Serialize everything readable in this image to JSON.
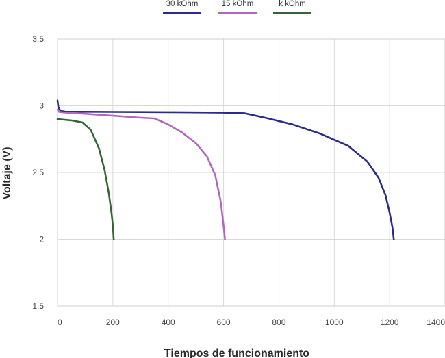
{
  "chart_data": {
    "type": "line",
    "title": "",
    "xlabel": "Tiempos de funcionamiento",
    "ylabel": "Voltaje (V)",
    "xlim": [
      0,
      1400
    ],
    "ylim": [
      1.5,
      3.5
    ],
    "x_ticks": [
      0,
      200,
      400,
      600,
      800,
      1000,
      1200,
      1400
    ],
    "x_tick_labels": [
      "0",
      "200",
      "400",
      "600",
      "800",
      "1000",
      "1200",
      "1400"
    ],
    "y_ticks": [
      1.5,
      2,
      2.5,
      3,
      3.5
    ],
    "y_tick_labels": [
      "1.5",
      "2",
      "2.5",
      "3",
      "3.5"
    ],
    "grid": true,
    "legend_position": "top",
    "series": [
      {
        "name": "30 kOhm",
        "color": "#2a2a8f",
        "x": [
          0,
          3,
          8,
          15,
          30,
          100,
          200,
          300,
          400,
          500,
          600,
          675,
          750,
          850,
          950,
          1050,
          1120,
          1160,
          1185,
          1200,
          1210,
          1215
        ],
        "y": [
          3.04,
          2.99,
          2.97,
          2.96,
          2.955,
          2.955,
          2.954,
          2.953,
          2.952,
          2.95,
          2.948,
          2.944,
          2.91,
          2.86,
          2.79,
          2.7,
          2.58,
          2.46,
          2.33,
          2.2,
          2.09,
          2.0
        ]
      },
      {
        "name": "15 kOhm",
        "color": "#b366c2",
        "x": [
          0,
          5,
          20,
          100,
          200,
          300,
          350,
          400,
          450,
          500,
          540,
          570,
          590,
          600,
          605
        ],
        "y": [
          2.97,
          2.955,
          2.95,
          2.94,
          2.925,
          2.91,
          2.905,
          2.86,
          2.8,
          2.72,
          2.62,
          2.48,
          2.28,
          2.1,
          2.0
        ]
      },
      {
        "name": "k kOhm",
        "color": "#336633",
        "x": [
          0,
          50,
          90,
          120,
          150,
          170,
          185,
          195,
          200,
          203
        ],
        "y": [
          2.9,
          2.89,
          2.875,
          2.82,
          2.68,
          2.52,
          2.35,
          2.2,
          2.1,
          2.0
        ]
      }
    ]
  }
}
